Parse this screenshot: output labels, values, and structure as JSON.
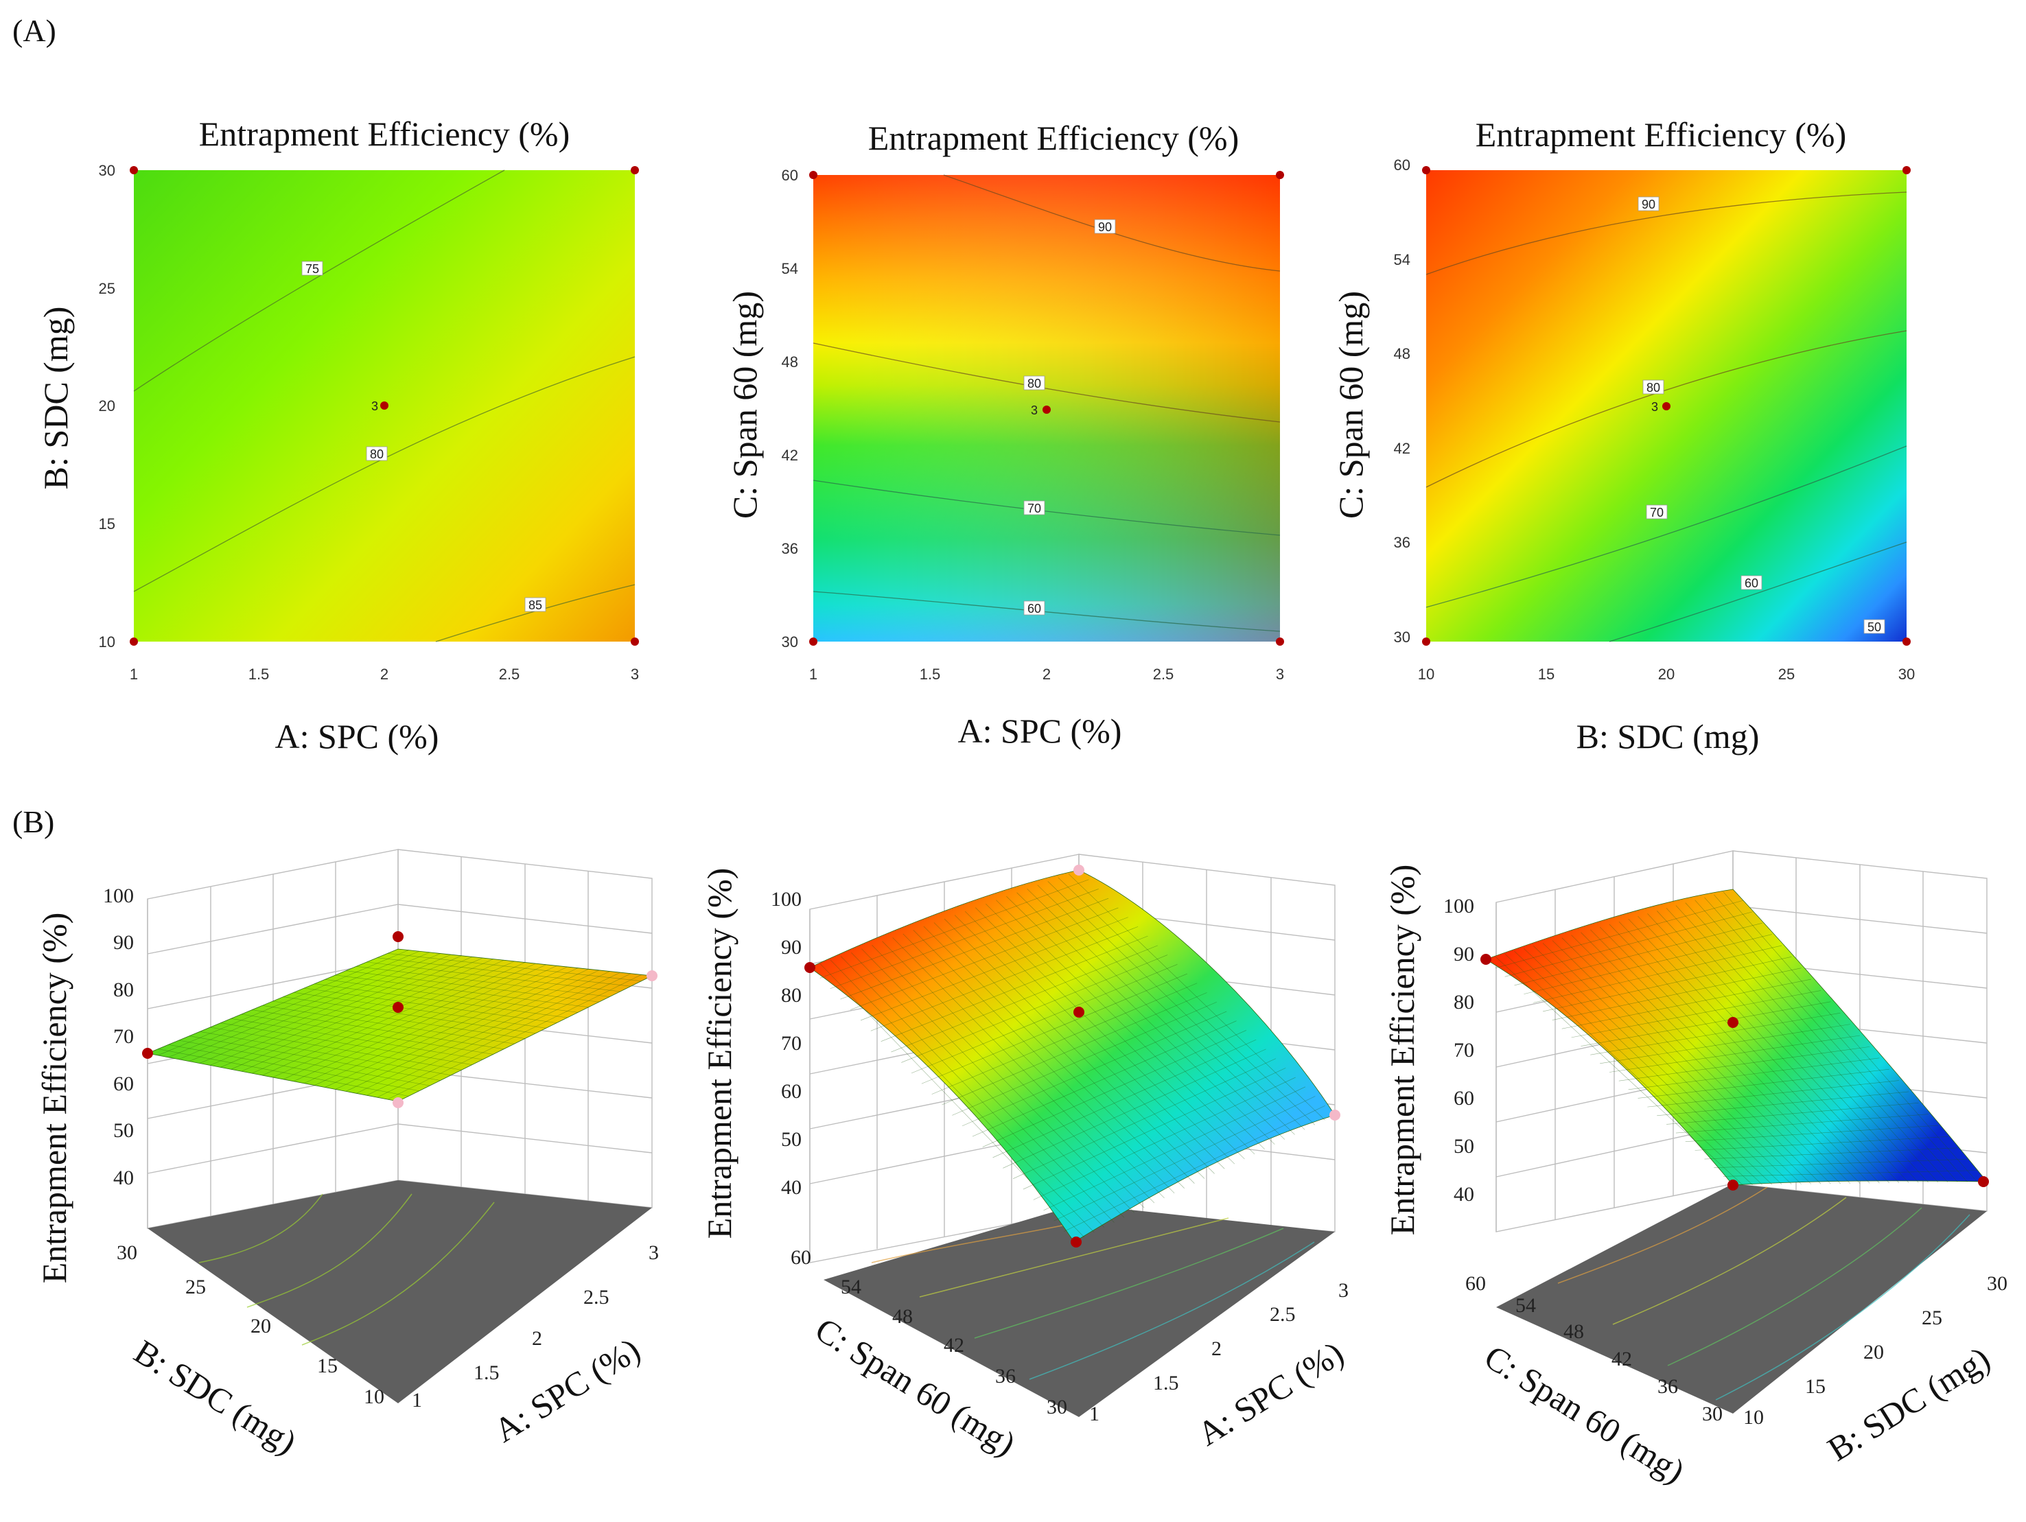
{
  "panel_labels": {
    "a": "(A)",
    "b": "(B)"
  },
  "chart_data": [
    {
      "type": "contour",
      "title": "Entrapment Efficiency (%)",
      "xlabel": "A: SPC (%)",
      "ylabel": "B: SDC (mg)",
      "xlim": [
        1,
        3
      ],
      "ylim": [
        10,
        30
      ],
      "xticks": [
        "1",
        "1.5",
        "2",
        "2.5",
        "3"
      ],
      "yticks": [
        "10",
        "15",
        "20",
        "25",
        "30"
      ],
      "contour_labels": [
        "75",
        "80",
        "85"
      ],
      "center_point_label": "3",
      "design_points": [
        [
          1,
          10
        ],
        [
          3,
          10
        ],
        [
          1,
          30
        ],
        [
          3,
          30
        ],
        [
          2,
          20
        ]
      ]
    },
    {
      "type": "contour",
      "title": "Entrapment Efficiency (%)",
      "xlabel": "A: SPC (%)",
      "ylabel": "C: Span 60 (mg)",
      "xlim": [
        1,
        3
      ],
      "ylim": [
        30,
        60
      ],
      "xticks": [
        "1",
        "1.5",
        "2",
        "2.5",
        "3"
      ],
      "yticks": [
        "30",
        "36",
        "42",
        "48",
        "54",
        "60"
      ],
      "contour_labels": [
        "60",
        "70",
        "80",
        "90"
      ],
      "center_point_label": "3",
      "design_points": [
        [
          1,
          30
        ],
        [
          3,
          30
        ],
        [
          1,
          60
        ],
        [
          3,
          60
        ],
        [
          2,
          45
        ]
      ]
    },
    {
      "type": "contour",
      "title": "Entrapment Efficiency (%)",
      "xlabel": "B: SDC (mg)",
      "ylabel": "C: Span 60 (mg)",
      "xlim": [
        10,
        30
      ],
      "ylim": [
        30,
        60
      ],
      "xticks": [
        "10",
        "15",
        "20",
        "25",
        "30"
      ],
      "yticks": [
        "30",
        "36",
        "42",
        "48",
        "54",
        "60"
      ],
      "contour_labels": [
        "50",
        "60",
        "70",
        "80",
        "90"
      ],
      "center_point_label": "3",
      "design_points": [
        [
          10,
          30
        ],
        [
          30,
          30
        ],
        [
          10,
          60
        ],
        [
          30,
          60
        ],
        [
          20,
          45
        ]
      ]
    },
    {
      "type": "surface3d",
      "zlabel": "Entrapment Efficiency (%)",
      "xlabel": "A: SPC (%)",
      "ylabel": "B: SDC (mg)",
      "zticks": [
        "40",
        "50",
        "60",
        "70",
        "80",
        "90",
        "100"
      ],
      "xticks": [
        "1",
        "1.5",
        "2",
        "2.5",
        "3"
      ],
      "yticks": [
        "10",
        "15",
        "20",
        "25",
        "30"
      ],
      "zlim": [
        40,
        100
      ],
      "corner_values": {
        "x_low_y_low": 79,
        "x_high_y_low": 86,
        "x_low_y_high": 74,
        "x_high_y_high": 79
      }
    },
    {
      "type": "surface3d",
      "zlabel": "Entrapment Efficiency (%)",
      "xlabel": "A: SPC (%)",
      "ylabel": "C: Span 60 (mg)",
      "zticks": [
        "40",
        "50",
        "60",
        "70",
        "80",
        "90",
        "100"
      ],
      "xticks": [
        "1",
        "1.5",
        "2",
        "2.5",
        "3"
      ],
      "yticks": [
        "30",
        "36",
        "42",
        "48",
        "54",
        "60"
      ],
      "zlim": [
        40,
        100
      ],
      "corner_values": {
        "x_low_y_low": 56,
        "x_high_y_low": 58,
        "x_low_y_high": 86,
        "x_high_y_high": 93
      }
    },
    {
      "type": "surface3d",
      "zlabel": "Entrapment Efficiency (%)",
      "xlabel": "B: SDC (mg)",
      "ylabel": "C: Span 60 (mg)",
      "zticks": [
        "40",
        "50",
        "60",
        "70",
        "80",
        "90",
        "100"
      ],
      "xticks": [
        "10",
        "15",
        "20",
        "25",
        "30"
      ],
      "yticks": [
        "30",
        "36",
        "42",
        "48",
        "54",
        "60"
      ],
      "zlim": [
        40,
        100
      ],
      "corner_values": {
        "x_low_y_low": 62,
        "x_high_y_low": 48,
        "x_low_y_high": 93,
        "x_high_y_high": 86
      }
    }
  ]
}
